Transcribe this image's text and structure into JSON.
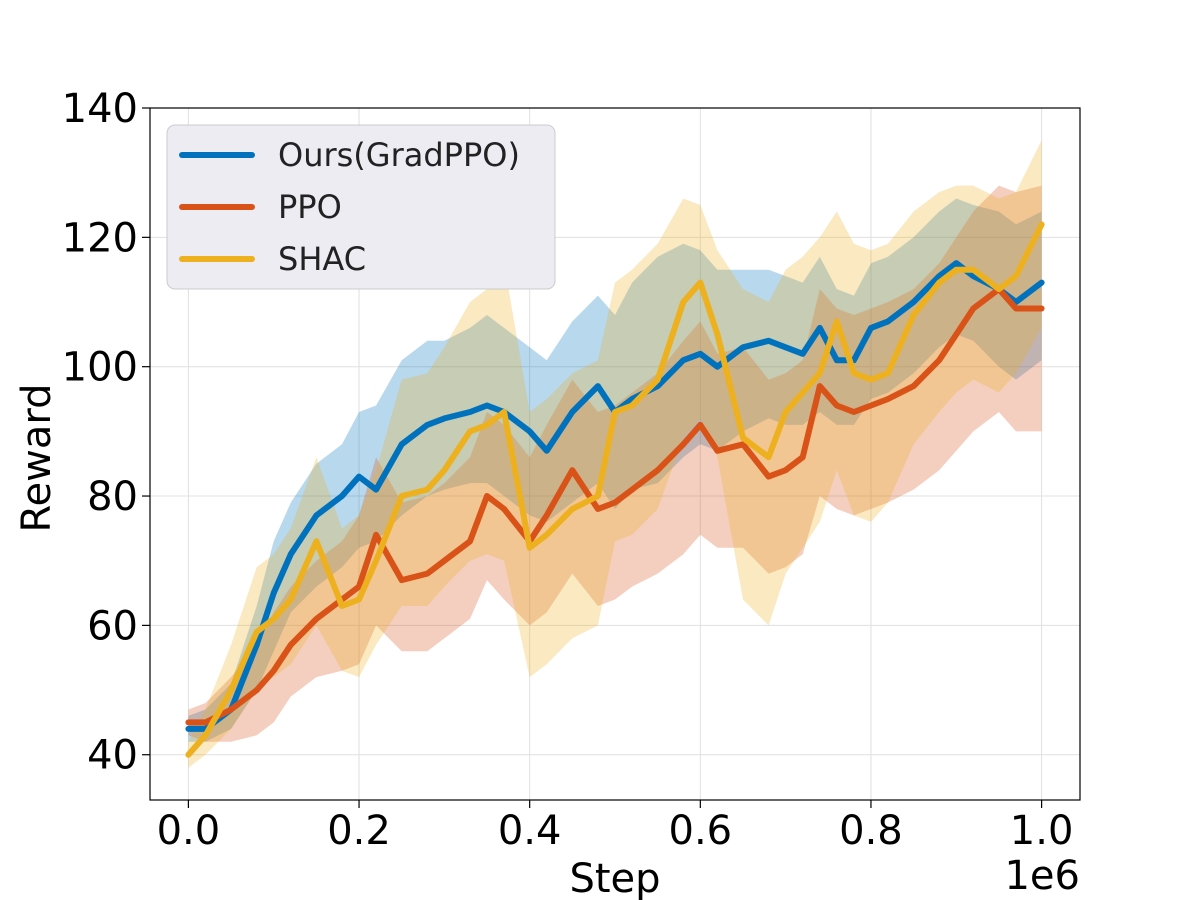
{
  "chart_data": {
    "type": "line",
    "title": "",
    "xlabel": "Step",
    "ylabel": "Reward",
    "x_offset_label": "1e6",
    "xlim": [
      -0.045,
      1.045
    ],
    "ylim": [
      33,
      140
    ],
    "xticks": [
      0.0,
      0.2,
      0.4,
      0.6,
      0.8,
      1.0
    ],
    "xtick_labels": [
      "0.0",
      "0.2",
      "0.4",
      "0.6",
      "0.8",
      "1.0"
    ],
    "yticks": [
      40,
      60,
      80,
      100,
      120,
      140
    ],
    "ytick_labels": [
      "40",
      "60",
      "80",
      "100",
      "120",
      "140"
    ],
    "grid": true,
    "legend_position": "top-left",
    "x": [
      0.0,
      0.02,
      0.05,
      0.08,
      0.1,
      0.12,
      0.15,
      0.18,
      0.2,
      0.22,
      0.25,
      0.28,
      0.3,
      0.33,
      0.35,
      0.37,
      0.4,
      0.42,
      0.45,
      0.48,
      0.5,
      0.52,
      0.55,
      0.58,
      0.6,
      0.62,
      0.65,
      0.68,
      0.7,
      0.72,
      0.74,
      0.76,
      0.78,
      0.8,
      0.82,
      0.85,
      0.88,
      0.9,
      0.92,
      0.95,
      0.97,
      1.0
    ],
    "series": [
      {
        "name": "Ours(GradPPO)",
        "color": "#0072BD",
        "values": [
          44,
          44,
          47,
          57,
          65,
          71,
          77,
          80,
          83,
          81,
          88,
          91,
          92,
          93,
          94,
          93,
          90,
          87,
          93,
          97,
          93,
          95,
          97,
          101,
          102,
          100,
          103,
          104,
          103,
          102,
          106,
          101,
          101,
          106,
          107,
          110,
          114,
          116,
          114,
          112,
          110,
          113
        ],
        "lower": [
          42,
          42,
          44,
          50,
          56,
          62,
          66,
          69,
          72,
          73,
          77,
          80,
          81,
          82,
          82,
          80,
          77,
          76,
          79,
          82,
          78,
          81,
          82,
          86,
          88,
          87,
          90,
          92,
          91,
          91,
          93,
          91,
          91,
          95,
          96,
          99,
          103,
          105,
          104,
          100,
          98,
          101
        ],
        "upper": [
          46,
          47,
          51,
          63,
          73,
          79,
          85,
          88,
          93,
          94,
          101,
          104,
          104,
          106,
          108,
          106,
          103,
          101,
          107,
          111,
          108,
          113,
          117,
          119,
          118,
          115,
          115,
          115,
          114,
          113,
          117,
          112,
          111,
          116,
          117,
          120,
          124,
          126,
          125,
          124,
          122,
          124
        ]
      },
      {
        "name": "PPO",
        "color": "#D95319",
        "values": [
          45,
          45,
          47,
          50,
          53,
          57,
          61,
          64,
          66,
          74,
          67,
          68,
          70,
          73,
          80,
          78,
          73,
          77,
          84,
          78,
          79,
          81,
          84,
          88,
          91,
          87,
          88,
          83,
          84,
          86,
          97,
          94,
          93,
          94,
          95,
          97,
          101,
          105,
          109,
          112,
          109,
          109
        ],
        "lower": [
          43,
          42,
          42,
          43,
          45,
          49,
          52,
          53,
          54,
          60,
          56,
          56,
          58,
          61,
          67,
          64,
          60,
          62,
          68,
          63,
          64,
          66,
          68,
          71,
          74,
          72,
          72,
          68,
          69,
          71,
          80,
          78,
          77,
          78,
          79,
          81,
          84,
          87,
          90,
          93,
          90,
          90
        ],
        "upper": [
          47,
          48,
          52,
          57,
          62,
          66,
          70,
          73,
          77,
          86,
          79,
          80,
          82,
          86,
          93,
          91,
          86,
          91,
          98,
          93,
          94,
          96,
          99,
          104,
          107,
          102,
          103,
          98,
          99,
          101,
          112,
          109,
          108,
          109,
          110,
          112,
          116,
          120,
          124,
          128,
          127,
          128
        ]
      },
      {
        "name": "SHAC",
        "color": "#EDB120",
        "values": [
          40,
          43,
          50,
          59,
          61,
          64,
          73,
          63,
          64,
          70,
          80,
          81,
          84,
          90,
          91,
          93,
          72,
          74,
          78,
          80,
          93,
          94,
          98,
          110,
          113,
          105,
          89,
          86,
          93,
          96,
          99,
          107,
          99,
          98,
          99,
          108,
          113,
          115,
          115,
          112,
          114,
          122
        ],
        "lower": [
          38,
          40,
          44,
          50,
          52,
          54,
          60,
          53,
          52,
          57,
          63,
          63,
          66,
          70,
          71,
          70,
          52,
          54,
          58,
          60,
          73,
          74,
          78,
          89,
          92,
          86,
          64,
          60,
          68,
          72,
          76,
          84,
          77,
          76,
          79,
          88,
          93,
          96,
          98,
          96,
          99,
          106
        ],
        "upper": [
          42,
          47,
          57,
          69,
          71,
          75,
          86,
          75,
          77,
          84,
          98,
          99,
          103,
          110,
          112,
          116,
          93,
          95,
          99,
          101,
          113,
          115,
          119,
          126,
          125,
          118,
          112,
          110,
          115,
          117,
          120,
          124,
          119,
          118,
          119,
          124,
          127,
          128,
          128,
          126,
          127,
          135
        ]
      }
    ]
  }
}
